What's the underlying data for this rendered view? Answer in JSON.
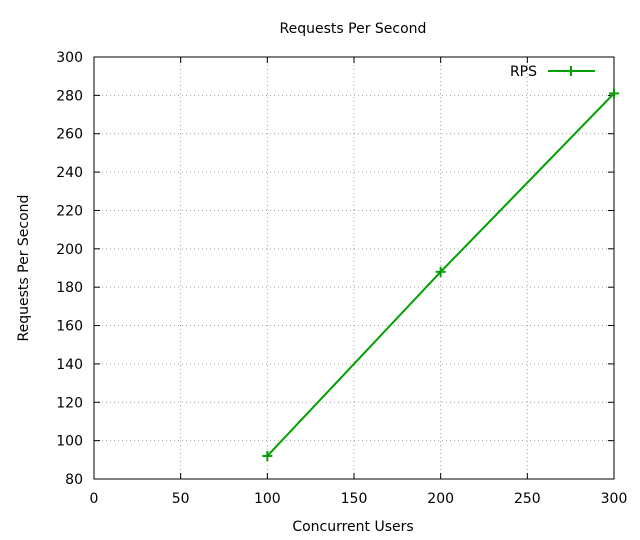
{
  "chart_data": {
    "type": "line",
    "title": "Requests Per Second",
    "xlabel": "Concurrent Users",
    "ylabel": "Requests Per Second",
    "xlim": [
      0,
      300
    ],
    "ylim": [
      80,
      300
    ],
    "xticks": [
      0,
      50,
      100,
      150,
      200,
      250,
      300
    ],
    "yticks": [
      80,
      100,
      120,
      140,
      160,
      180,
      200,
      220,
      240,
      260,
      280,
      300
    ],
    "grid": true,
    "legend_position": "top-right",
    "series": [
      {
        "name": "RPS",
        "color": "#00a000",
        "marker": "plus",
        "x": [
          100,
          200,
          300
        ],
        "y": [
          92,
          188,
          281
        ]
      }
    ]
  }
}
